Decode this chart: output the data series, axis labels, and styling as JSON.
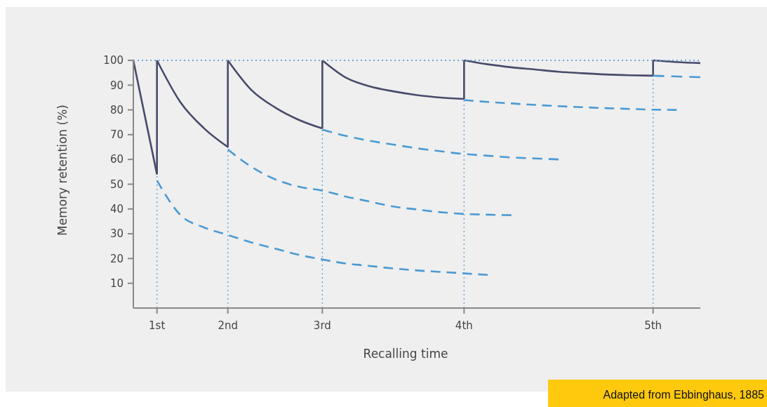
{
  "chart_data": {
    "type": "line",
    "xlabel": "Recalling time",
    "ylabel": "Memory retention (%)",
    "categories": [
      null,
      "1st",
      null,
      null,
      "2nd",
      null,
      null,
      null,
      "3rd",
      null,
      null,
      null,
      null,
      null,
      "4th",
      null,
      null,
      null,
      null,
      null,
      null,
      null,
      "5th",
      null,
      null
    ],
    "ylim": [
      0,
      100
    ],
    "yticks": [
      10,
      20,
      30,
      40,
      50,
      60,
      70,
      80,
      90,
      100
    ],
    "series": [
      {
        "color": "#474b6b",
        "line_style": "solid",
        "values": [
          100,
          54,
          null,
          null,
          null,
          null,
          null,
          null,
          null,
          null,
          null,
          null,
          null,
          null,
          null,
          null,
          null,
          null,
          null,
          null,
          null,
          null,
          null,
          null,
          null
        ]
      },
      {
        "color": "#474b6b",
        "line_style": "solid",
        "values": [
          null,
          100,
          83,
          72.5,
          65,
          null,
          null,
          null,
          null,
          null,
          null,
          null,
          null,
          null,
          null,
          null,
          null,
          null,
          null,
          null,
          null,
          null,
          null,
          null,
          null
        ],
        "errors": [
          null,
          [
            54,
            100
          ],
          null,
          null,
          null,
          null,
          null,
          null,
          null,
          null,
          null,
          null,
          null,
          null,
          null,
          null,
          null,
          null,
          null,
          null,
          null,
          null,
          null,
          null,
          null
        ]
      },
      {
        "color": "#474b6b",
        "line_style": "solid",
        "values": [
          null,
          null,
          null,
          null,
          100,
          88,
          81,
          76,
          72.5,
          null,
          null,
          null,
          null,
          null,
          null,
          null,
          null,
          null,
          null,
          null,
          null,
          null,
          null,
          null,
          null
        ],
        "errors": [
          null,
          null,
          null,
          null,
          [
            65,
            100
          ],
          null,
          null,
          null,
          null,
          null,
          null,
          null,
          null,
          null,
          null,
          null,
          null,
          null,
          null,
          null,
          null,
          null,
          null,
          null,
          null
        ]
      },
      {
        "color": "#474b6b",
        "line_style": "solid",
        "values": [
          null,
          null,
          null,
          null,
          null,
          null,
          null,
          null,
          100,
          93,
          89.5,
          87.5,
          86,
          85,
          84.4,
          null,
          null,
          null,
          null,
          null,
          null,
          null,
          null,
          null,
          null
        ],
        "errors": [
          null,
          null,
          null,
          null,
          null,
          null,
          null,
          null,
          [
            72.5,
            100
          ],
          null,
          null,
          null,
          null,
          null,
          null,
          null,
          null,
          null,
          null,
          null,
          null,
          null,
          null,
          null,
          null
        ]
      },
      {
        "color": "#474b6b",
        "line_style": "solid",
        "values": [
          null,
          null,
          null,
          null,
          null,
          null,
          null,
          null,
          null,
          null,
          null,
          null,
          null,
          null,
          100,
          98.4,
          97.2,
          96.3,
          95.4,
          94.8,
          94.3,
          94,
          93.8,
          null,
          null
        ],
        "errors": [
          null,
          null,
          null,
          null,
          null,
          null,
          null,
          null,
          null,
          null,
          null,
          null,
          null,
          null,
          [
            84.4,
            100
          ],
          null,
          null,
          null,
          null,
          null,
          null,
          null,
          null,
          null,
          null
        ]
      },
      {
        "color": "#474b6b",
        "line_style": "solid",
        "values": [
          null,
          null,
          null,
          null,
          null,
          null,
          null,
          null,
          null,
          null,
          null,
          null,
          null,
          null,
          null,
          null,
          null,
          null,
          null,
          null,
          null,
          null,
          100,
          99.3,
          98.9
        ],
        "errors": [
          null,
          null,
          null,
          null,
          null,
          null,
          null,
          null,
          null,
          null,
          null,
          null,
          null,
          null,
          null,
          null,
          null,
          null,
          null,
          null,
          null,
          null,
          [
            93.8,
            100
          ],
          null,
          null
        ]
      },
      {
        "color": "#4a9ad4",
        "line_style": "dashed",
        "values": [
          null,
          51.5,
          37.5,
          32.5,
          29.5,
          26.5,
          24,
          21.5,
          19.6,
          18,
          17,
          16,
          15.2,
          14.6,
          14,
          13.4,
          null,
          null,
          null,
          null,
          null,
          null,
          null,
          null,
          null
        ]
      },
      {
        "color": "#4a9ad4",
        "line_style": "dashed",
        "values": [
          null,
          null,
          null,
          null,
          64,
          57,
          52,
          49,
          47.4,
          45,
          43,
          41,
          39.8,
          38.7,
          38,
          37.7,
          37.5,
          null,
          null,
          null,
          null,
          null,
          null,
          null,
          null
        ]
      },
      {
        "color": "#4a9ad4",
        "line_style": "dashed",
        "values": [
          null,
          null,
          null,
          null,
          null,
          null,
          null,
          null,
          72,
          69.5,
          67.5,
          66,
          64.5,
          63.3,
          62.2,
          61.5,
          60.8,
          60.4,
          60,
          null,
          null,
          null,
          null,
          null,
          null
        ]
      },
      {
        "color": "#4a9ad4",
        "line_style": "dashed",
        "values": [
          null,
          null,
          null,
          null,
          null,
          null,
          null,
          null,
          null,
          null,
          null,
          null,
          null,
          null,
          84,
          83.2,
          82.6,
          82,
          81.5,
          81.1,
          80.7,
          80.4,
          80.1,
          80,
          null
        ]
      },
      {
        "color": "#4a9ad4",
        "line_style": "dashed",
        "values": [
          null,
          null,
          null,
          null,
          null,
          null,
          null,
          null,
          null,
          null,
          null,
          null,
          null,
          null,
          null,
          null,
          null,
          null,
          null,
          null,
          null,
          null,
          93.8,
          93.5,
          93.2
        ]
      }
    ],
    "ref_lines": [
      {
        "axis": "y",
        "value": 100,
        "color": "#6aa8dc",
        "line_style": "dotted"
      },
      {
        "axis": "x",
        "value": "1st",
        "color": "#6aa8dc",
        "line_style": "dotted"
      },
      {
        "axis": "x",
        "value": "2nd",
        "color": "#6aa8dc",
        "line_style": "dotted"
      },
      {
        "axis": "x",
        "value": "3rd",
        "color": "#6aa8dc",
        "line_style": "dotted"
      },
      {
        "axis": "x",
        "value": "4th",
        "color": "#6aa8dc",
        "line_style": "dotted"
      },
      {
        "axis": "x",
        "value": "5th",
        "color": "#6aa8dc",
        "line_style": "dotted"
      }
    ],
    "annotations": [
      "Adapted from Ebbinghaus, 1885"
    ]
  }
}
